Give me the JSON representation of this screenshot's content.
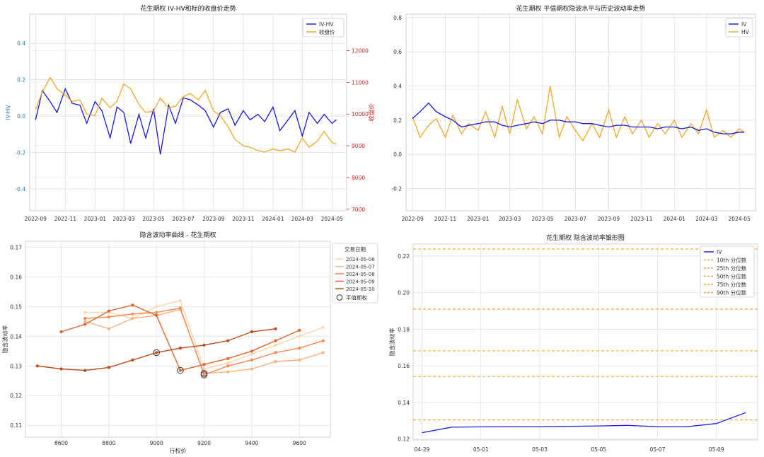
{
  "charts": [
    {
      "title": "花生期权 IV-HV和标的收盘价走势",
      "ylabel_left": "IV-HV",
      "ylabel_right": "收盘价",
      "x_ticks": [
        "2022-09",
        "2022-11",
        "2023-01",
        "2023-03",
        "2023-05",
        "2023-07",
        "2023-09",
        "2023-11",
        "2024-01",
        "2024-03",
        "2024-05"
      ],
      "y_ticks_left": [
        "-0.4",
        "-0.2",
        "0.0",
        "0.2",
        "0.4"
      ],
      "y_ticks_right": [
        "7000",
        "8000",
        "9000",
        "10000",
        "11000",
        "12000"
      ],
      "legend": [
        "IV-HV",
        "收盘价"
      ]
    },
    {
      "title": "花生期权 平值期权隐波水平与历史波动率走势",
      "x_ticks": [
        "2022-09",
        "2022-11",
        "2023-01",
        "2023-03",
        "2023-05",
        "2023-07",
        "2023-09",
        "2023-11",
        "2024-01",
        "2024-03",
        "2024-05"
      ],
      "y_ticks": [
        "-0.2",
        "0.0",
        "0.2",
        "0.4",
        "0.6",
        "0.8"
      ],
      "legend": [
        "IV",
        "HV"
      ]
    },
    {
      "title": "隐含波动率曲线 - 花生期权",
      "xlabel": "行权价",
      "ylabel": "隐含波动率",
      "x_ticks": [
        "8600",
        "8800",
        "9000",
        "9200",
        "9400",
        "9600"
      ],
      "y_ticks": [
        "0.11",
        "0.12",
        "0.13",
        "0.14",
        "0.15",
        "0.16",
        "0.17"
      ],
      "legend_title": "交易日期",
      "legend": [
        "2024-05-06",
        "2024-05-07",
        "2024-05-08",
        "2024-05-09",
        "2024-05-10"
      ],
      "atm_label": "平值期权"
    },
    {
      "title": "花生期权 隐含波动率锥形图",
      "ylabel": "隐含波动率",
      "x_ticks": [
        "04-29",
        "05-01",
        "05-03",
        "05-05",
        "05-07",
        "05-09"
      ],
      "y_ticks": [
        "0.12",
        "0.14",
        "0.16",
        "0.18",
        "0.20",
        "0.22"
      ],
      "legend": [
        "IV",
        "10th 分位数",
        "25th 分位数",
        "50th 分位数",
        "75th 分位数",
        "90th 分位数"
      ]
    }
  ],
  "chart_data": [
    {
      "type": "line",
      "x_range": [
        "2022-08-20",
        "2024-05-31"
      ],
      "ylim_left": [
        -0.52,
        0.56
      ],
      "ylim_right": [
        6950,
        13150
      ],
      "series": [
        {
          "name": "IV-HV",
          "axis": "left",
          "color": "#1515e6",
          "x": [
            "2022-09-01",
            "2022-09-15",
            "2022-10-01",
            "2022-10-15",
            "2022-11-01",
            "2022-11-15",
            "2022-12-01",
            "2022-12-15",
            "2023-01-01",
            "2023-01-15",
            "2023-02-01",
            "2023-02-15",
            "2023-03-01",
            "2023-03-15",
            "2023-04-01",
            "2023-04-15",
            "2023-05-01",
            "2023-05-15",
            "2023-06-01",
            "2023-06-15",
            "2023-07-01",
            "2023-07-15",
            "2023-08-01",
            "2023-08-15",
            "2023-09-01",
            "2023-09-15",
            "2023-10-01",
            "2023-10-15",
            "2023-11-01",
            "2023-11-15",
            "2023-12-01",
            "2023-12-15",
            "2024-01-01",
            "2024-01-15",
            "2024-02-01",
            "2024-02-15",
            "2024-03-01",
            "2024-03-15",
            "2024-04-01",
            "2024-04-15",
            "2024-05-01",
            "2024-05-10"
          ],
          "values": [
            -0.02,
            0.14,
            0.08,
            0.02,
            0.15,
            0.07,
            0.06,
            -0.04,
            0.08,
            0.03,
            -0.12,
            0.05,
            0.02,
            -0.15,
            0.01,
            -0.12,
            0.04,
            -0.21,
            0.06,
            -0.04,
            0.1,
            0.09,
            0.06,
            0.03,
            -0.06,
            0.02,
            0.04,
            -0.05,
            0.03,
            -0.02,
            0.01,
            -0.03,
            0.05,
            -0.08,
            -0.02,
            0.03,
            -0.11,
            0.02,
            -0.04,
            0.01,
            -0.04,
            -0.02
          ]
        },
        {
          "name": "收盘价",
          "axis": "right",
          "color": "#f5a623",
          "x": [
            "2022-09-01",
            "2022-09-15",
            "2022-10-01",
            "2022-10-15",
            "2022-11-01",
            "2022-11-15",
            "2022-12-01",
            "2022-12-15",
            "2023-01-01",
            "2023-01-15",
            "2023-02-01",
            "2023-02-15",
            "2023-03-01",
            "2023-03-15",
            "2023-04-01",
            "2023-04-15",
            "2023-05-01",
            "2023-05-15",
            "2023-06-01",
            "2023-06-15",
            "2023-07-01",
            "2023-07-15",
            "2023-08-01",
            "2023-08-15",
            "2023-09-01",
            "2023-09-15",
            "2023-10-01",
            "2023-10-15",
            "2023-11-01",
            "2023-11-15",
            "2023-12-01",
            "2023-12-15",
            "2024-01-01",
            "2024-01-15",
            "2024-02-01",
            "2024-02-15",
            "2024-03-01",
            "2024-03-15",
            "2024-04-01",
            "2024-04-15",
            "2024-05-01",
            "2024-05-10"
          ],
          "values": [
            10150,
            10700,
            11150,
            10800,
            10600,
            10400,
            10450,
            10000,
            9950,
            10500,
            10200,
            10400,
            10950,
            10800,
            10300,
            10050,
            10100,
            10500,
            10200,
            10250,
            10550,
            10650,
            10450,
            10750,
            10100,
            9950,
            9600,
            9200,
            9000,
            8950,
            8850,
            8800,
            8900,
            8850,
            8900,
            8800,
            9250,
            8950,
            9150,
            9450,
            9100,
            9050
          ]
        }
      ]
    },
    {
      "type": "line",
      "x_range": [
        "2022-08-20",
        "2024-05-31"
      ],
      "ylim": [
        -0.33,
        0.82
      ],
      "series": [
        {
          "name": "IV",
          "color": "#1515e6",
          "x": [
            "2022-09-01",
            "2022-09-15",
            "2022-10-01",
            "2022-10-15",
            "2022-11-01",
            "2022-11-15",
            "2022-12-01",
            "2022-12-15",
            "2023-01-01",
            "2023-01-15",
            "2023-02-01",
            "2023-02-15",
            "2023-03-01",
            "2023-03-15",
            "2023-04-01",
            "2023-04-15",
            "2023-05-01",
            "2023-05-15",
            "2023-06-01",
            "2023-06-15",
            "2023-07-01",
            "2023-07-15",
            "2023-08-01",
            "2023-08-15",
            "2023-09-01",
            "2023-09-15",
            "2023-10-01",
            "2023-10-15",
            "2023-11-01",
            "2023-11-15",
            "2023-12-01",
            "2023-12-15",
            "2024-01-01",
            "2024-01-15",
            "2024-02-01",
            "2024-02-15",
            "2024-03-01",
            "2024-03-15",
            "2024-04-01",
            "2024-04-15",
            "2024-05-01",
            "2024-05-10"
          ],
          "values": [
            0.21,
            0.25,
            0.3,
            0.25,
            0.22,
            0.2,
            0.16,
            0.17,
            0.18,
            0.19,
            0.19,
            0.17,
            0.16,
            0.17,
            0.18,
            0.19,
            0.18,
            0.2,
            0.2,
            0.19,
            0.19,
            0.18,
            0.18,
            0.17,
            0.16,
            0.17,
            0.17,
            0.16,
            0.16,
            0.16,
            0.15,
            0.16,
            0.16,
            0.15,
            0.16,
            0.14,
            0.15,
            0.13,
            0.12,
            0.12,
            0.13,
            0.13
          ]
        },
        {
          "name": "HV",
          "color": "#f5a623",
          "x": [
            "2022-09-01",
            "2022-09-15",
            "2022-10-01",
            "2022-10-15",
            "2022-11-01",
            "2022-11-15",
            "2022-12-01",
            "2022-12-15",
            "2023-01-01",
            "2023-01-15",
            "2023-02-01",
            "2023-02-15",
            "2023-03-01",
            "2023-03-15",
            "2023-04-01",
            "2023-04-15",
            "2023-05-01",
            "2023-05-15",
            "2023-06-01",
            "2023-06-15",
            "2023-07-01",
            "2023-07-15",
            "2023-08-01",
            "2023-08-15",
            "2023-09-01",
            "2023-09-15",
            "2023-10-01",
            "2023-10-15",
            "2023-11-01",
            "2023-11-15",
            "2023-12-01",
            "2023-12-15",
            "2024-01-01",
            "2024-01-15",
            "2024-02-01",
            "2024-02-15",
            "2024-03-01",
            "2024-03-15",
            "2024-04-01",
            "2024-04-15",
            "2024-05-01",
            "2024-05-10"
          ],
          "values": [
            0.22,
            0.1,
            0.17,
            0.21,
            0.1,
            0.23,
            0.12,
            0.18,
            0.14,
            0.25,
            0.1,
            0.28,
            0.12,
            0.32,
            0.15,
            0.22,
            0.12,
            0.4,
            0.1,
            0.22,
            0.14,
            0.08,
            0.18,
            0.1,
            0.26,
            0.1,
            0.22,
            0.12,
            0.2,
            0.1,
            0.18,
            0.12,
            0.2,
            0.1,
            0.18,
            0.12,
            0.26,
            0.1,
            0.14,
            0.1,
            0.15,
            0.13
          ]
        }
      ]
    },
    {
      "type": "line",
      "xlim": [
        8450,
        9730
      ],
      "ylim": [
        0.106,
        0.172
      ],
      "series": [
        {
          "name": "2024-05-06",
          "color": "#fdd4b0",
          "x": [
            8700,
            8800,
            8900,
            9000,
            9100,
            9200,
            9300,
            9400,
            9500,
            9600,
            9700
          ],
          "values": [
            0.148,
            0.148,
            0.146,
            0.15,
            0.152,
            0.129,
            0.131,
            0.134,
            0.137,
            0.14,
            0.143
          ]
        },
        {
          "name": "2024-05-07",
          "color": "#fdb07b",
          "x": [
            8700,
            8800,
            8900,
            9000,
            9100,
            9200,
            9300,
            9400,
            9500,
            9600,
            9700
          ],
          "values": [
            0.145,
            0.1425,
            0.146,
            0.147,
            0.149,
            0.1275,
            0.128,
            0.129,
            0.1315,
            0.132,
            0.1345
          ]
        },
        {
          "name": "2024-05-08",
          "color": "#f7894c",
          "x": [
            8700,
            8800,
            8900,
            9000,
            9100,
            9200,
            9300,
            9400,
            9500,
            9600,
            9700
          ],
          "values": [
            0.146,
            0.1465,
            0.1475,
            0.148,
            0.1495,
            0.127,
            0.13,
            0.132,
            0.1345,
            0.136,
            0.1385
          ]
        },
        {
          "name": "2024-05-09",
          "color": "#e5622a",
          "x": [
            8600,
            8700,
            8800,
            8900,
            9000,
            9100,
            9200,
            9300,
            9400,
            9500,
            9600
          ],
          "values": [
            0.1415,
            0.144,
            0.1485,
            0.1505,
            0.147,
            0.1285,
            0.1305,
            0.1325,
            0.135,
            0.1385,
            0.142
          ]
        },
        {
          "name": "2024-05-10",
          "color": "#bf4a16",
          "x": [
            8500,
            8600,
            8700,
            8800,
            8900,
            9000,
            9100,
            9200,
            9300,
            9400,
            9500
          ],
          "values": [
            0.13,
            0.129,
            0.1285,
            0.1295,
            0.132,
            0.1345,
            0.136,
            0.137,
            0.1385,
            0.1415,
            0.1425
          ]
        }
      ],
      "atm": [
        [
          9000,
          0.1345
        ],
        [
          9100,
          0.1285
        ],
        [
          9200,
          0.1275
        ],
        [
          9200,
          0.127
        ]
      ]
    },
    {
      "type": "line",
      "x": [
        "04-29",
        "04-30",
        "05-01",
        "05-02",
        "05-03",
        "05-04",
        "05-05",
        "05-06",
        "05-07",
        "05-08",
        "05-09",
        "05-10"
      ],
      "xlim_idx": [
        -0.3,
        11.4
      ],
      "ylim": [
        0.1195,
        0.2265
      ],
      "series": [
        {
          "name": "IV",
          "color": "#1a1ae8",
          "values": [
            0.1235,
            0.1265,
            0.1267,
            0.1268,
            0.1268,
            0.127,
            0.1272,
            0.1275,
            0.1268,
            0.1268,
            0.1285,
            0.1345
          ]
        }
      ],
      "percentiles": [
        {
          "name": "10th 分位数",
          "value": 0.1305
        },
        {
          "name": "25th 分位数",
          "value": 0.1542
        },
        {
          "name": "50th 分位数",
          "value": 0.1682
        },
        {
          "name": "75th 分位数",
          "value": 0.191
        },
        {
          "name": "90th 分位数",
          "value": 0.2238
        }
      ],
      "percentile_color": "#f5a623"
    }
  ]
}
